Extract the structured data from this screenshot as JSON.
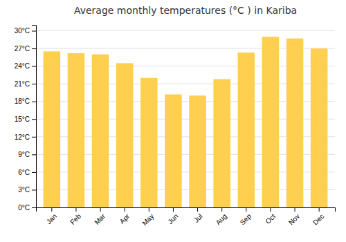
{
  "chart_data": {
    "type": "bar",
    "title": "Average monthly temperatures (°C ) in Kariba",
    "categories": [
      "Jan",
      "Feb",
      "Mar",
      "Apr",
      "May",
      "Jun",
      "Jul",
      "Aug",
      "Sep",
      "Oct",
      "Nov",
      "Dec"
    ],
    "values": [
      26.5,
      26.2,
      26.0,
      24.5,
      22.0,
      19.2,
      19.0,
      21.8,
      26.3,
      29.0,
      28.7,
      27.0
    ],
    "color": "#FFD050",
    "ylim": [
      0,
      31
    ],
    "yticks": [
      {
        "value": 0,
        "label": "0°C"
      },
      {
        "value": 3,
        "label": "3°C"
      },
      {
        "value": 6,
        "label": "6°C"
      },
      {
        "value": 9,
        "label": "9°C"
      },
      {
        "value": 12,
        "label": "12°C"
      },
      {
        "value": 15,
        "label": "15°C"
      },
      {
        "value": 18,
        "label": "18°C"
      },
      {
        "value": 21,
        "label": "21°C"
      },
      {
        "value": 24,
        "label": "24°C"
      },
      {
        "value": 27,
        "label": "27°C"
      },
      {
        "value": 30,
        "label": "30°C"
      }
    ],
    "grid": true
  }
}
